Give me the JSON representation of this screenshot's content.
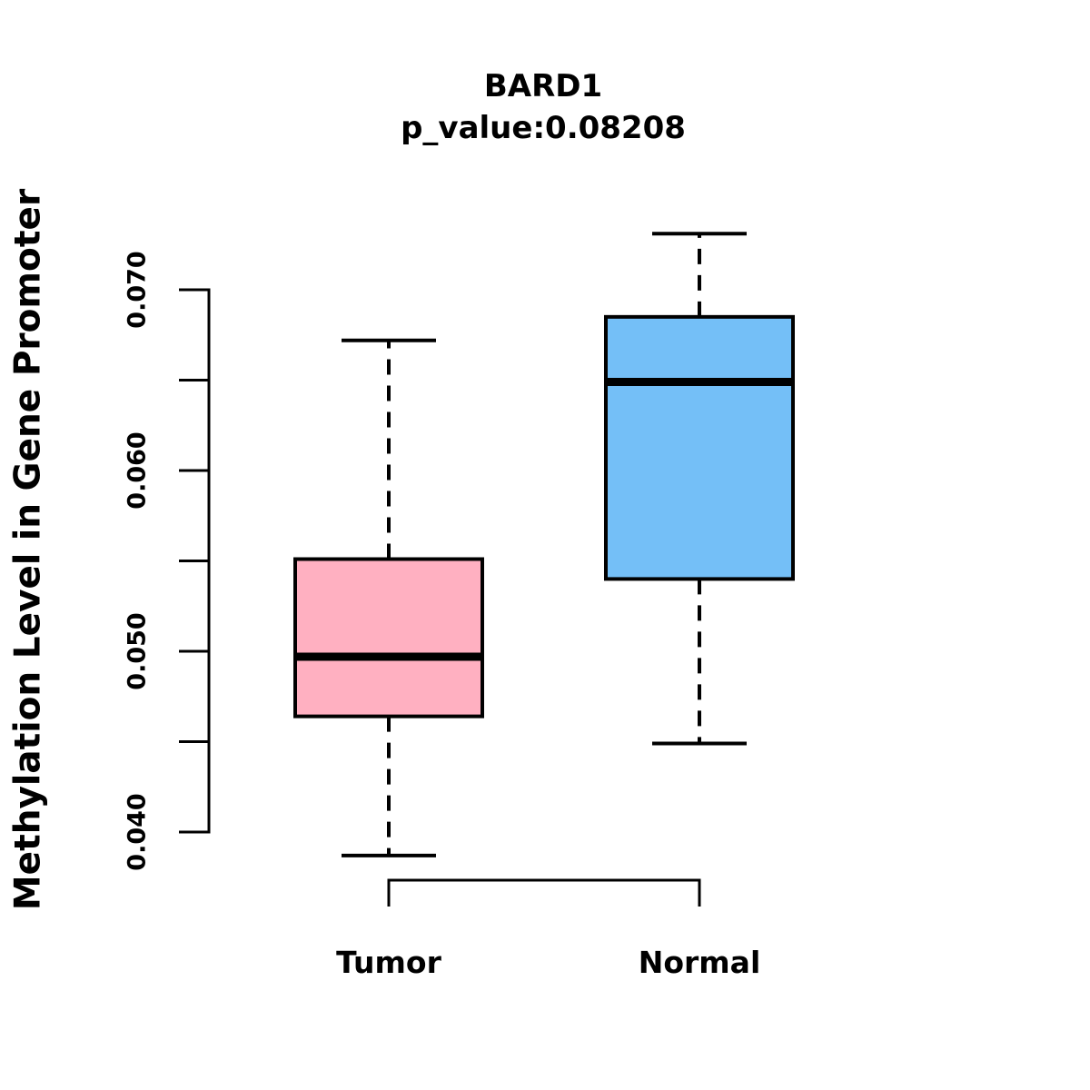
{
  "title": "BARD1",
  "subtitle": "p_value:0.08208",
  "y_axis_label": "Methylation Level in Gene Promoter",
  "colors": {
    "tumor_fill": "#FFB0C1",
    "normal_fill": "#74BFF7",
    "line": "#000000",
    "background": "#FFFFFF"
  },
  "chart_data": {
    "type": "boxplot",
    "title": "BARD1",
    "subtitle": "p_value:0.08208",
    "ylabel": "Methylation Level in Gene Promoter",
    "xlabel": "",
    "categories": [
      "Tumor",
      "Normal"
    ],
    "ylim": [
      0.04,
      0.07
    ],
    "y_ticks_all": [
      0.04,
      0.045,
      0.05,
      0.055,
      0.06,
      0.065,
      0.07
    ],
    "y_ticks_labeled": [
      0.04,
      0.05,
      0.06,
      0.07
    ],
    "y_tick_labels": [
      "0.040",
      "0.050",
      "0.060",
      "0.070"
    ],
    "grid": false,
    "legend": "none",
    "whisker_style": "dashed",
    "series": [
      {
        "name": "Tumor",
        "fill": "#FFB0C1",
        "lower_whisker": 0.0387,
        "q1": 0.0464,
        "median": 0.0497,
        "q3": 0.0551,
        "upper_whisker": 0.0672,
        "outliers": []
      },
      {
        "name": "Normal",
        "fill": "#74BFF7",
        "lower_whisker": 0.0449,
        "q1": 0.054,
        "median": 0.0649,
        "q3": 0.0685,
        "upper_whisker": 0.0731,
        "outliers": []
      }
    ]
  }
}
